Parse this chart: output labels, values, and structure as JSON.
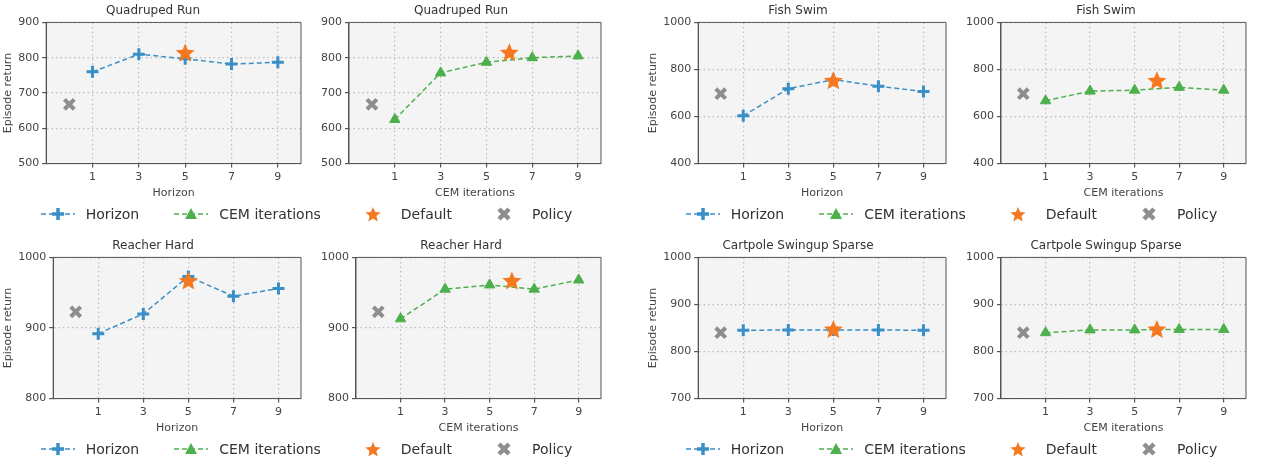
{
  "chart_data": [
    {
      "type": "line",
      "title": "Quadruped Run",
      "xlabel": "Horizon",
      "ylabel": "Episode return",
      "xlim": [
        -1,
        10
      ],
      "xticks": [
        1,
        3,
        5,
        7,
        9
      ],
      "ylim": [
        500,
        900
      ],
      "yticks": [
        500,
        600,
        700,
        800,
        900
      ],
      "grid": true,
      "legend": "bottom",
      "series": [
        {
          "name": "Horizon",
          "type": "line",
          "color": "#3a8fc7",
          "marker": "plus",
          "line_style": "dashed",
          "x": [
            1,
            3,
            5,
            7,
            9
          ],
          "values": [
            760,
            810,
            797,
            782,
            787
          ]
        },
        {
          "name": "Default",
          "type": "scatter",
          "color": "#f47920",
          "marker": "star",
          "x": [
            5
          ],
          "values": [
            812
          ]
        },
        {
          "name": "Policy",
          "type": "scatter",
          "color": "#8e8e8e",
          "marker": "cross",
          "x": [
            0
          ],
          "values": [
            668
          ]
        }
      ]
    },
    {
      "type": "line",
      "title": "Quadruped Run",
      "xlabel": "CEM iterations",
      "xlim": [
        -1,
        10
      ],
      "xticks": [
        1,
        3,
        5,
        7,
        9
      ],
      "ylim": [
        500,
        900
      ],
      "yticks": [
        500,
        600,
        700,
        800,
        900
      ],
      "grid": true,
      "legend": "bottom",
      "series": [
        {
          "name": "CEM iterations",
          "type": "line",
          "color": "#4cb04c",
          "marker": "triangle",
          "line_style": "dashed",
          "x": [
            1,
            3,
            5,
            7,
            9
          ],
          "values": [
            625,
            757,
            787,
            800,
            805
          ]
        },
        {
          "name": "Default",
          "type": "scatter",
          "color": "#f47920",
          "marker": "star",
          "x": [
            6
          ],
          "values": [
            813
          ]
        },
        {
          "name": "Policy",
          "type": "scatter",
          "color": "#8e8e8e",
          "marker": "cross",
          "x": [
            0
          ],
          "values": [
            668
          ]
        }
      ]
    },
    {
      "type": "line",
      "title": "Fish Swim",
      "xlabel": "Horizon",
      "ylabel": "Episode return",
      "xlim": [
        -1,
        10
      ],
      "xticks": [
        1,
        3,
        5,
        7,
        9
      ],
      "ylim": [
        400,
        1000
      ],
      "yticks": [
        400,
        600,
        800,
        1000
      ],
      "grid": true,
      "legend": "bottom",
      "series": [
        {
          "name": "Horizon",
          "type": "line",
          "color": "#3a8fc7",
          "marker": "plus",
          "line_style": "dashed",
          "x": [
            1,
            3,
            5,
            7,
            9
          ],
          "values": [
            603,
            718,
            757,
            729,
            706
          ]
        },
        {
          "name": "Default",
          "type": "scatter",
          "color": "#f47920",
          "marker": "star",
          "x": [
            5
          ],
          "values": [
            750
          ]
        },
        {
          "name": "Policy",
          "type": "scatter",
          "color": "#8e8e8e",
          "marker": "cross",
          "x": [
            0
          ],
          "values": [
            697
          ]
        }
      ]
    },
    {
      "type": "line",
      "title": "Fish Swim",
      "xlabel": "CEM iterations",
      "xlim": [
        -1,
        10
      ],
      "xticks": [
        1,
        3,
        5,
        7,
        9
      ],
      "ylim": [
        400,
        1000
      ],
      "yticks": [
        400,
        600,
        800,
        1000
      ],
      "grid": true,
      "legend": "bottom",
      "series": [
        {
          "name": "CEM iterations",
          "type": "line",
          "color": "#4cb04c",
          "marker": "triangle",
          "line_style": "dashed",
          "x": [
            1,
            3,
            5,
            7,
            9
          ],
          "values": [
            667,
            708,
            712,
            724,
            712
          ]
        },
        {
          "name": "Default",
          "type": "scatter",
          "color": "#f47920",
          "marker": "star",
          "x": [
            6
          ],
          "values": [
            750
          ]
        },
        {
          "name": "Policy",
          "type": "scatter",
          "color": "#8e8e8e",
          "marker": "cross",
          "x": [
            0
          ],
          "values": [
            697
          ]
        }
      ]
    },
    {
      "type": "line",
      "title": "Reacher Hard",
      "xlabel": "Horizon",
      "ylabel": "Episode return",
      "xlim": [
        -1,
        10
      ],
      "xticks": [
        1,
        3,
        5,
        7,
        9
      ],
      "ylim": [
        800,
        1000
      ],
      "yticks": [
        800,
        900,
        1000
      ],
      "grid": true,
      "legend": "bottom",
      "series": [
        {
          "name": "Horizon",
          "type": "line",
          "color": "#3a8fc7",
          "marker": "plus",
          "line_style": "dashed",
          "x": [
            1,
            3,
            5,
            7,
            9
          ],
          "values": [
            892,
            920,
            973,
            945,
            956
          ]
        },
        {
          "name": "Default",
          "type": "scatter",
          "color": "#f47920",
          "marker": "star",
          "x": [
            5
          ],
          "values": [
            966
          ]
        },
        {
          "name": "Policy",
          "type": "scatter",
          "color": "#8e8e8e",
          "marker": "cross",
          "x": [
            0
          ],
          "values": [
            923
          ]
        }
      ]
    },
    {
      "type": "line",
      "title": "Reacher Hard",
      "xlabel": "CEM iterations",
      "xlim": [
        -1,
        10
      ],
      "xticks": [
        1,
        3,
        5,
        7,
        9
      ],
      "ylim": [
        800,
        1000
      ],
      "yticks": [
        800,
        900,
        1000
      ],
      "grid": true,
      "legend": "bottom",
      "series": [
        {
          "name": "CEM iterations",
          "type": "line",
          "color": "#4cb04c",
          "marker": "triangle",
          "line_style": "dashed",
          "x": [
            1,
            3,
            5,
            7,
            9
          ],
          "values": [
            913,
            955,
            961,
            955,
            968
          ]
        },
        {
          "name": "Default",
          "type": "scatter",
          "color": "#f47920",
          "marker": "star",
          "x": [
            6
          ],
          "values": [
            966
          ]
        },
        {
          "name": "Policy",
          "type": "scatter",
          "color": "#8e8e8e",
          "marker": "cross",
          "x": [
            0
          ],
          "values": [
            923
          ]
        }
      ]
    },
    {
      "type": "line",
      "title": "Cartpole Swingup Sparse",
      "xlabel": "Horizon",
      "ylabel": "Episode return",
      "xlim": [
        -1,
        10
      ],
      "xticks": [
        1,
        3,
        5,
        7,
        9
      ],
      "ylim": [
        700,
        1000
      ],
      "yticks": [
        700,
        800,
        900,
        1000
      ],
      "grid": true,
      "legend": "bottom",
      "series": [
        {
          "name": "Horizon",
          "type": "line",
          "color": "#3a8fc7",
          "marker": "plus",
          "line_style": "dashed",
          "x": [
            1,
            3,
            5,
            7,
            9
          ],
          "values": [
            845,
            846,
            846,
            846,
            845
          ]
        },
        {
          "name": "Default",
          "type": "scatter",
          "color": "#f47920",
          "marker": "star",
          "x": [
            5
          ],
          "values": [
            846
          ]
        },
        {
          "name": "Policy",
          "type": "scatter",
          "color": "#8e8e8e",
          "marker": "cross",
          "x": [
            0
          ],
          "values": [
            840
          ]
        }
      ]
    },
    {
      "type": "line",
      "title": "Cartpole Swingup Sparse",
      "xlabel": "CEM iterations",
      "xlim": [
        -1,
        10
      ],
      "xticks": [
        1,
        3,
        5,
        7,
        9
      ],
      "ylim": [
        700,
        1000
      ],
      "yticks": [
        700,
        800,
        900,
        1000
      ],
      "grid": true,
      "legend": "bottom",
      "series": [
        {
          "name": "CEM iterations",
          "type": "line",
          "color": "#4cb04c",
          "marker": "triangle",
          "line_style": "dashed",
          "x": [
            1,
            3,
            5,
            7,
            9
          ],
          "values": [
            840,
            846,
            846,
            847,
            847
          ]
        },
        {
          "name": "Default",
          "type": "scatter",
          "color": "#f47920",
          "marker": "star",
          "x": [
            6
          ],
          "values": [
            846
          ]
        },
        {
          "name": "Policy",
          "type": "scatter",
          "color": "#8e8e8e",
          "marker": "cross",
          "x": [
            0
          ],
          "values": [
            840
          ]
        }
      ]
    }
  ]
}
